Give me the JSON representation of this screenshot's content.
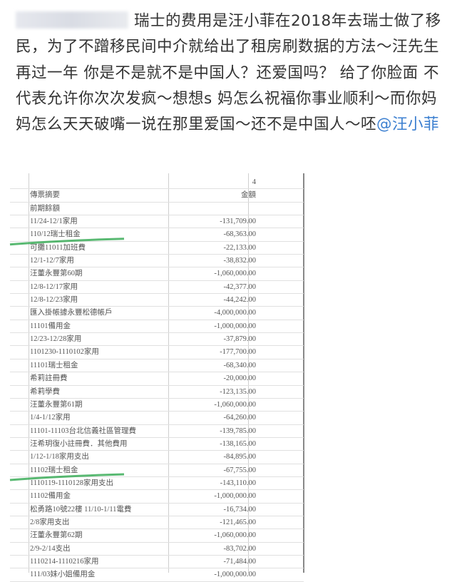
{
  "post": {
    "text": "瑞士的费用是汪小菲在2018年去瑞士做了移民，为了不蹭移民间中介就给出了租房刷数据的方法～汪先生 再过一年 你是不是就不是中国人？还爱国吗？ 给了你脸面 不代表允许你次次发疯～想想s 妈怎么祝福你事业顺利～而你妈妈怎么天天破嘴一说在那里爱国～还不是中国人～呸",
    "mention": "@汪小菲"
  },
  "sheet": {
    "page_number": "4",
    "header": {
      "description": "傳票摘要",
      "amount": "金額"
    },
    "rows": [
      {
        "description": "前期餘額",
        "amount": ""
      },
      {
        "description": "11/24-12/1家用",
        "amount": "-131,709.00"
      },
      {
        "description": "110/12瑞士租金",
        "amount": "-68,363.00",
        "highlighted": true
      },
      {
        "description": "可攤11011加班費",
        "amount": "-22,133.00"
      },
      {
        "description": "12/1-12/7家用",
        "amount": "-38,832.00"
      },
      {
        "description": "汪董永豐第60期",
        "amount": "-1,060,000.00"
      },
      {
        "description": "12/8-12/17家用",
        "amount": "-42,377.00"
      },
      {
        "description": "12/8-12/23家用",
        "amount": "-44,242.00"
      },
      {
        "description": "匯入掛帳據永豐松德帳戶",
        "amount": "-4,000,000.00"
      },
      {
        "description": "11101備用金",
        "amount": "-1,000,000.00"
      },
      {
        "description": "12/23-12/28家用",
        "amount": "-37,879.00"
      },
      {
        "description": "1101230-1110102家用",
        "amount": "-177,700.00"
      },
      {
        "description": "11101瑞士租金",
        "amount": "-68,340.00"
      },
      {
        "description": "希莉註冊費",
        "amount": "-20,000.00"
      },
      {
        "description": "希莉學費",
        "amount": "-123,135.00"
      },
      {
        "description": "汪董永豐第61期",
        "amount": "-1,060,000.00"
      },
      {
        "description": "1/4-1/12家用",
        "amount": "-64,260.00"
      },
      {
        "description": "11101-11103台北信義社區管理費",
        "amount": "-139,785.00"
      },
      {
        "description": "汪希玥復小註冊費．其他費用",
        "amount": "-138,165.00"
      },
      {
        "description": "1/12-1/18家用支出",
        "amount": "-84,895.00"
      },
      {
        "description": "11102瑞士租金",
        "amount": "-67,755.00",
        "highlighted": true
      },
      {
        "description": "1110119-1110128家用支出",
        "amount": "-143,110.00"
      },
      {
        "description": "11102備用金",
        "amount": "-1,000,000.00"
      },
      {
        "description": "松勇路10號22樓 11/10-1/11電費",
        "amount": "-16,734.00"
      },
      {
        "description": "2/8家用支出",
        "amount": "-121,465.00"
      },
      {
        "description": "汪董永豐第62期",
        "amount": "-1,060,000.00"
      },
      {
        "description": "2/9-2/14支出",
        "amount": "-83,702.00"
      },
      {
        "description": "1110214-1110216家用",
        "amount": "-71,484.00"
      },
      {
        "description": "111/03妹小姐備用金",
        "amount": "-1,000,000.00"
      }
    ],
    "highlight_color": "#2fa84f"
  }
}
